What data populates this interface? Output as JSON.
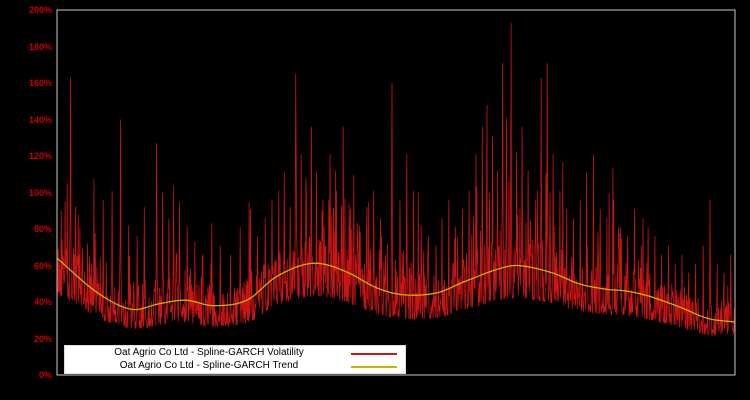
{
  "colors": {
    "background": "#000000",
    "plot_border": "#c8c8c8",
    "volatility": "#cc1414",
    "trend": "#c8b400",
    "tick_label": "#cc0000",
    "legend_bg": "#ffffff",
    "legend_text": "#000000"
  },
  "y_axis": {
    "ticks": [
      "0%",
      "20%",
      "40%",
      "60%",
      "80%",
      "100%",
      "120%",
      "140%",
      "160%",
      "180%",
      "200%"
    ],
    "min": 0,
    "max": 200
  },
  "legend": {
    "items": [
      {
        "label": "Oat Agrio Co Ltd - Spline-GARCH Volatility",
        "color": "#cc1414"
      },
      {
        "label": "Oat Agrio Co Ltd - Spline-GARCH Trend",
        "color": "#c8b400"
      }
    ]
  },
  "chart_data": {
    "type": "line",
    "title": "",
    "xlabel": "",
    "ylabel": "",
    "ylim": [
      0,
      200
    ],
    "x_range": [
      0,
      1
    ],
    "grid": false,
    "legend_position": "bottom-left",
    "series": [
      {
        "name": "Oat Agrio Co Ltd - Spline-GARCH Volatility",
        "color": "#cc1414",
        "style": "noisy",
        "peaks": [
          [
            0.012,
            95
          ],
          [
            0.02,
            163
          ],
          [
            0.031,
            88
          ],
          [
            0.045,
            72
          ],
          [
            0.056,
            78
          ],
          [
            0.068,
            96
          ],
          [
            0.081,
            101
          ],
          [
            0.094,
            140
          ],
          [
            0.106,
            82
          ],
          [
            0.118,
            76
          ],
          [
            0.129,
            92
          ],
          [
            0.147,
            127
          ],
          [
            0.156,
            100
          ],
          [
            0.165,
            86
          ],
          [
            0.172,
            104
          ],
          [
            0.181,
            95
          ],
          [
            0.192,
            81
          ],
          [
            0.203,
            73
          ],
          [
            0.215,
            66
          ],
          [
            0.227,
            61
          ],
          [
            0.241,
            71
          ],
          [
            0.256,
            66
          ],
          [
            0.27,
            81
          ],
          [
            0.285,
            91
          ],
          [
            0.296,
            76
          ],
          [
            0.307,
            86
          ],
          [
            0.317,
            96
          ],
          [
            0.327,
            101
          ],
          [
            0.335,
            111
          ],
          [
            0.344,
            92
          ],
          [
            0.352,
            165
          ],
          [
            0.36,
            121
          ],
          [
            0.368,
            101
          ],
          [
            0.375,
            136
          ],
          [
            0.383,
            111
          ],
          [
            0.392,
            96
          ],
          [
            0.403,
            121
          ],
          [
            0.412,
            101
          ],
          [
            0.422,
            136
          ],
          [
            0.433,
            91
          ],
          [
            0.446,
            82
          ],
          [
            0.457,
            92
          ],
          [
            0.467,
            101
          ],
          [
            0.477,
            86
          ],
          [
            0.487,
            72
          ],
          [
            0.494,
            160
          ],
          [
            0.506,
            96
          ],
          [
            0.516,
            121
          ],
          [
            0.526,
            101
          ],
          [
            0.537,
            82
          ],
          [
            0.548,
            76
          ],
          [
            0.559,
            71
          ],
          [
            0.568,
            86
          ],
          [
            0.578,
            96
          ],
          [
            0.588,
            81
          ],
          [
            0.598,
            91
          ],
          [
            0.608,
            101
          ],
          [
            0.618,
            121
          ],
          [
            0.627,
            136
          ],
          [
            0.634,
            148
          ],
          [
            0.642,
            131
          ],
          [
            0.65,
            112
          ],
          [
            0.657,
            171
          ],
          [
            0.663,
            141
          ],
          [
            0.67,
            193
          ],
          [
            0.678,
            122
          ],
          [
            0.686,
            136
          ],
          [
            0.695,
            112
          ],
          [
            0.706,
            96
          ],
          [
            0.714,
            163
          ],
          [
            0.723,
            171
          ],
          [
            0.732,
            121
          ],
          [
            0.742,
            101
          ],
          [
            0.752,
            91
          ],
          [
            0.762,
            86
          ],
          [
            0.772,
            96
          ],
          [
            0.781,
            111
          ],
          [
            0.791,
            121
          ],
          [
            0.801,
            91
          ],
          [
            0.811,
            86
          ],
          [
            0.821,
            96
          ],
          [
            0.831,
            81
          ],
          [
            0.842,
            76
          ],
          [
            0.852,
            91
          ],
          [
            0.862,
            71
          ],
          [
            0.872,
            81
          ],
          [
            0.882,
            76
          ],
          [
            0.892,
            66
          ],
          [
            0.902,
            71
          ],
          [
            0.912,
            61
          ],
          [
            0.922,
            66
          ],
          [
            0.932,
            56
          ],
          [
            0.942,
            61
          ],
          [
            0.953,
            71
          ],
          [
            0.963,
            96
          ],
          [
            0.974,
            61
          ],
          [
            0.984,
            56
          ],
          [
            0.994,
            66
          ]
        ]
      },
      {
        "name": "Oat Agrio Co Ltd - Spline-GARCH Trend",
        "color": "#c8b400",
        "style": "smooth",
        "points": [
          [
            0,
            64
          ],
          [
            0.06,
            45
          ],
          [
            0.11,
            36
          ],
          [
            0.15,
            39
          ],
          [
            0.19,
            41
          ],
          [
            0.23,
            38
          ],
          [
            0.28,
            41
          ],
          [
            0.32,
            53
          ],
          [
            0.36,
            60
          ],
          [
            0.39,
            61
          ],
          [
            0.43,
            56
          ],
          [
            0.47,
            48
          ],
          [
            0.51,
            44
          ],
          [
            0.56,
            45
          ],
          [
            0.6,
            51
          ],
          [
            0.65,
            58
          ],
          [
            0.68,
            60
          ],
          [
            0.73,
            56
          ],
          [
            0.77,
            50
          ],
          [
            0.81,
            47
          ],
          [
            0.84,
            46
          ],
          [
            0.875,
            43
          ],
          [
            0.92,
            37
          ],
          [
            0.96,
            31
          ],
          [
            1,
            29
          ]
        ]
      }
    ],
    "noise": {
      "samples": 1600,
      "seed": 42,
      "band_low_factor": 0.7,
      "min_floor": 22
    }
  }
}
